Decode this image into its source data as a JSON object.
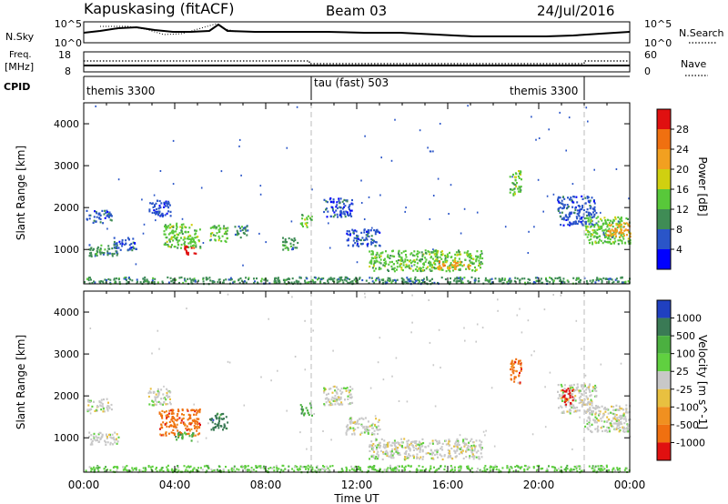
{
  "header": {
    "station": "Kapuskasing (fitACF)",
    "beam": "Beam 03",
    "date": "24/Jul/2016"
  },
  "status_panels": {
    "nsky_label": "N.Sky",
    "nsearch_label": "N.Search",
    "nsky_ticks": [
      "10^5",
      "10^0"
    ],
    "nsearch_ticks": [
      "10^5",
      "10^0"
    ],
    "freq_label_line1": "Freq.",
    "freq_label_line2": "[MHz]",
    "freq_ticks": [
      "18",
      "8"
    ],
    "nave_label": "Nave",
    "nave_ticks": [
      "60",
      "0"
    ],
    "cpid_label": "CPID",
    "cpid_segments": [
      {
        "name": "themis 3300",
        "start_h": 0,
        "end_h": 10
      },
      {
        "name": "tau (fast) 503",
        "start_h": 10,
        "end_h": 22
      },
      {
        "name": "themis 3300",
        "start_h": 22,
        "end_h": 24
      }
    ]
  },
  "chart_data": [
    {
      "type": "heatmap",
      "title": "",
      "xlabel": "Time UT",
      "ylabel": "Slant Range [km]",
      "xlim_hours": [
        0,
        24
      ],
      "x_tick_labels": [
        "00:00",
        "04:00",
        "08:00",
        "12:00",
        "16:00",
        "20:00",
        "00:00"
      ],
      "ylim_km": [
        180,
        4500
      ],
      "y_ticks": [
        1000,
        2000,
        3000,
        4000
      ],
      "colorbar": {
        "label": "Power [dB]",
        "ticks": [
          "4",
          "8",
          "12",
          "16",
          "20",
          "24",
          "28"
        ],
        "colors": [
          "#0000ff",
          "#2a55c8",
          "#3f8c55",
          "#58c83a",
          "#d0d010",
          "#f2a020",
          "#f07010",
          "#e01010"
        ]
      },
      "regions": [
        {
          "t0": 0.1,
          "t1": 1.2,
          "r0": 1650,
          "r1": 1950,
          "level": 1
        },
        {
          "t0": 1.3,
          "t1": 2.3,
          "r0": 1000,
          "r1": 1300,
          "level": 1
        },
        {
          "t0": 0.2,
          "t1": 1.5,
          "r0": 850,
          "r1": 1150,
          "level": 2
        },
        {
          "t0": 2.8,
          "t1": 3.8,
          "r0": 1800,
          "r1": 2200,
          "level": 1
        },
        {
          "t0": 3.5,
          "t1": 5.1,
          "r0": 1050,
          "r1": 1650,
          "level": 3
        },
        {
          "t0": 4.3,
          "t1": 4.9,
          "r0": 900,
          "r1": 1100,
          "level": 7
        },
        {
          "t0": 5.5,
          "t1": 6.3,
          "r0": 1200,
          "r1": 1600,
          "level": 3
        },
        {
          "t0": 6.6,
          "t1": 7.2,
          "r0": 1300,
          "r1": 1600,
          "level": 2
        },
        {
          "t0": 8.7,
          "t1": 9.4,
          "r0": 1000,
          "r1": 1300,
          "level": 2
        },
        {
          "t0": 9.5,
          "t1": 10.0,
          "r0": 1550,
          "r1": 1850,
          "level": 3
        },
        {
          "t0": 10.5,
          "t1": 11.8,
          "r0": 1800,
          "r1": 2250,
          "level": 1
        },
        {
          "t0": 11.5,
          "t1": 13.0,
          "r0": 1100,
          "r1": 1500,
          "level": 1
        },
        {
          "t0": 12.5,
          "t1": 17.5,
          "r0": 500,
          "r1": 1000,
          "level": 3
        },
        {
          "t0": 15.5,
          "t1": 17.0,
          "r0": 550,
          "r1": 750,
          "level": 5
        },
        {
          "t0": 18.7,
          "t1": 19.2,
          "r0": 2300,
          "r1": 2900,
          "level": 3
        },
        {
          "t0": 20.8,
          "t1": 22.5,
          "r0": 1600,
          "r1": 2300,
          "level": 1
        },
        {
          "t0": 22.0,
          "t1": 24.0,
          "r0": 1150,
          "r1": 1800,
          "level": 3
        },
        {
          "t0": 23.0,
          "t1": 24.0,
          "r0": 1300,
          "r1": 1650,
          "level": 5
        },
        {
          "t0": 0.0,
          "t1": 24.0,
          "r0": 200,
          "r1": 360,
          "level": 2
        }
      ]
    },
    {
      "type": "heatmap",
      "title": "",
      "xlabel": "Time UT",
      "ylabel": "Slant Range [km]",
      "xlim_hours": [
        0,
        24
      ],
      "x_tick_labels": [
        "00:00",
        "04:00",
        "08:00",
        "12:00",
        "16:00",
        "20:00",
        "00:00"
      ],
      "ylim_km": [
        180,
        4500
      ],
      "y_ticks": [
        1000,
        2000,
        3000,
        4000
      ],
      "colorbar": {
        "label": "Velocity [m s^-1]",
        "ticks": [
          "1000",
          "500",
          "100",
          "25",
          "-25",
          "-100",
          "-500",
          "-1000"
        ],
        "colors": [
          "#2040c0",
          "#3a7a55",
          "#4bb040",
          "#60d040",
          "#c8c8c8",
          "#e8c040",
          "#f09020",
          "#f07010",
          "#e01010"
        ]
      },
      "regions": [
        {
          "t0": 0.1,
          "t1": 1.2,
          "r0": 1650,
          "r1": 1950,
          "level": 4
        },
        {
          "t0": 0.2,
          "t1": 1.5,
          "r0": 850,
          "r1": 1150,
          "level": 4
        },
        {
          "t0": 2.8,
          "t1": 3.8,
          "r0": 1800,
          "r1": 2200,
          "level": 4
        },
        {
          "t0": 3.3,
          "t1": 5.1,
          "r0": 1050,
          "r1": 1700,
          "level": 7
        },
        {
          "t0": 4.0,
          "t1": 4.8,
          "r0": 950,
          "r1": 1150,
          "level": 2
        },
        {
          "t0": 5.5,
          "t1": 6.3,
          "r0": 1200,
          "r1": 1600,
          "level": 1
        },
        {
          "t0": 9.5,
          "t1": 10.0,
          "r0": 1550,
          "r1": 1850,
          "level": 2
        },
        {
          "t0": 10.5,
          "t1": 11.8,
          "r0": 1800,
          "r1": 2250,
          "level": 4
        },
        {
          "t0": 11.5,
          "t1": 13.0,
          "r0": 1100,
          "r1": 1500,
          "level": 4
        },
        {
          "t0": 12.5,
          "t1": 17.5,
          "r0": 500,
          "r1": 1000,
          "level": 4
        },
        {
          "t0": 18.7,
          "t1": 19.2,
          "r0": 2300,
          "r1": 2900,
          "level": 7
        },
        {
          "t0": 20.8,
          "t1": 22.5,
          "r0": 1600,
          "r1": 2300,
          "level": 4
        },
        {
          "t0": 21.0,
          "t1": 21.5,
          "r0": 1800,
          "r1": 2200,
          "level": 8
        },
        {
          "t0": 22.0,
          "t1": 24.0,
          "r0": 1150,
          "r1": 1800,
          "level": 4
        },
        {
          "t0": 0.0,
          "t1": 24.0,
          "r0": 200,
          "r1": 360,
          "level": 3
        }
      ]
    }
  ]
}
